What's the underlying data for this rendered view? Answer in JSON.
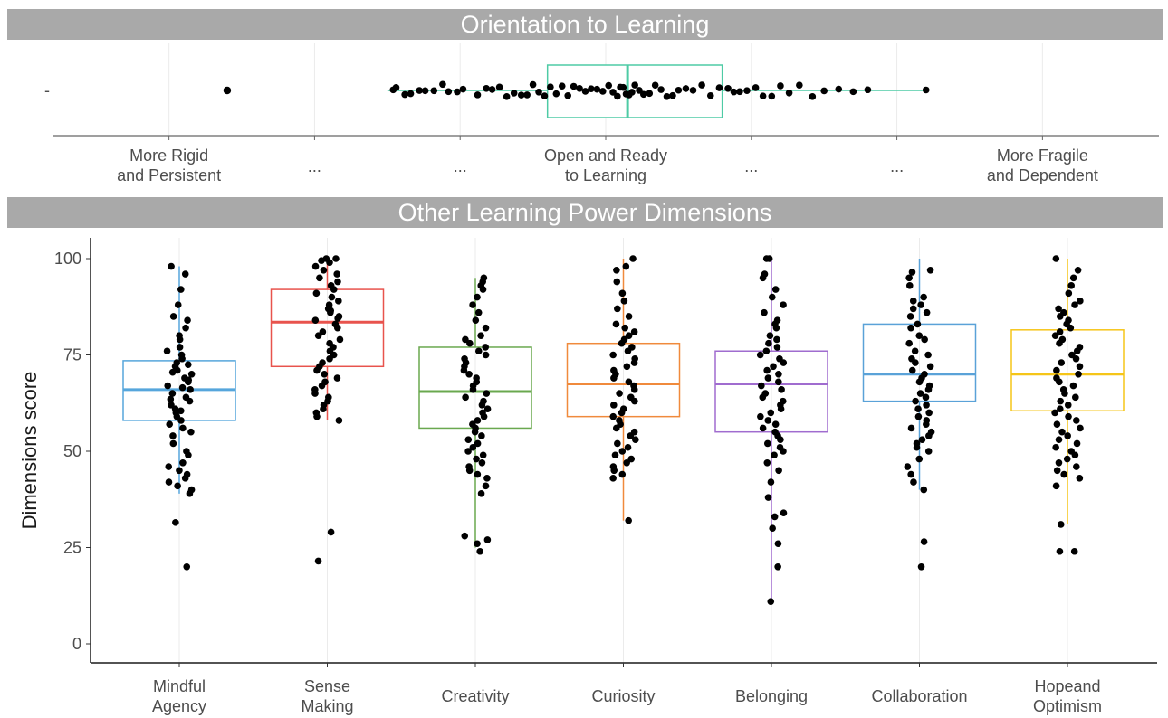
{
  "panels": {
    "top_title": "Orientation to Learning",
    "bottom_title": "Other Learning Power Dimensions"
  },
  "chart_data": [
    {
      "type": "box",
      "title": "Orientation to Learning",
      "orientation": "horizontal",
      "axis_categories": [
        {
          "lines": [
            "More Rigid",
            "and Persistent"
          ]
        },
        {
          "lines": [
            "..."
          ]
        },
        {
          "lines": [
            "..."
          ]
        },
        {
          "lines": [
            "Open and Ready",
            "to Learning"
          ]
        },
        {
          "lines": [
            "..."
          ]
        },
        {
          "lines": [
            "..."
          ]
        },
        {
          "lines": [
            "More Fragile",
            "and Dependent"
          ]
        }
      ],
      "y_tick_label": "-",
      "xlim": [
        -3.8,
        3.8
      ],
      "grid": true,
      "color": "#4ecba5",
      "box": {
        "min": -1.5,
        "q1": -0.4,
        "median": 0.15,
        "q3": 0.8,
        "max": 2.2
      },
      "outliers": [
        -2.6
      ],
      "points": [
        -1.46,
        -1.44,
        -1.38,
        -1.34,
        -1.28,
        -1.24,
        -1.18,
        -1.12,
        -1.08,
        -1.02,
        -0.98,
        -0.88,
        -0.82,
        -0.78,
        -0.73,
        -0.68,
        -0.63,
        -0.58,
        -0.54,
        -0.5,
        -0.46,
        -0.42,
        -0.38,
        -0.34,
        -0.3,
        -0.26,
        -0.22,
        -0.18,
        -0.14,
        -0.1,
        -0.06,
        -0.02,
        0.02,
        0.05,
        0.08,
        0.1,
        0.12,
        0.14,
        0.16,
        0.18,
        0.2,
        0.23,
        0.26,
        0.3,
        0.34,
        0.38,
        0.42,
        0.46,
        0.5,
        0.55,
        0.6,
        0.66,
        0.72,
        0.78,
        0.84,
        0.88,
        0.92,
        0.97,
        1.03,
        1.08,
        1.14,
        1.2,
        1.26,
        1.33,
        1.42,
        1.5,
        1.6,
        1.7,
        1.8,
        2.2
      ]
    },
    {
      "type": "box",
      "title": "Other Learning Power Dimensions",
      "ylabel": "Dimensions score",
      "ylim": [
        -5,
        105
      ],
      "yticks": [
        0,
        25,
        50,
        75,
        100
      ],
      "grid": true,
      "series": [
        {
          "category_lines": [
            "Mindful",
            "Agency"
          ],
          "color": "#56a6dc",
          "box": {
            "min": 39,
            "q1": 58,
            "median": 66,
            "q3": 73.5,
            "max": 98
          },
          "outliers": [
            31.5,
            20
          ],
          "points": [
            98,
            96,
            92,
            88,
            85,
            84,
            82,
            80,
            79,
            77,
            76,
            75,
            74,
            73,
            72.5,
            72,
            71,
            70.5,
            70,
            69,
            68.5,
            68,
            67,
            66.5,
            66,
            65,
            64,
            63.5,
            63,
            62,
            61,
            60.5,
            60,
            59,
            58,
            57,
            56,
            55,
            54,
            52,
            50,
            49,
            47,
            46,
            45,
            44,
            43,
            42,
            41,
            40,
            39
          ]
        },
        {
          "category_lines": [
            "Sense",
            "Making"
          ],
          "color": "#e8534d",
          "box": {
            "min": 58,
            "q1": 72,
            "median": 83.5,
            "q3": 92,
            "max": 100
          },
          "outliers": [
            29,
            21.5
          ],
          "points": [
            100,
            100,
            99.5,
            99,
            98,
            97,
            96,
            95,
            94,
            93,
            92,
            91,
            90,
            89,
            88,
            87,
            86.5,
            86,
            85,
            84.5,
            84,
            83,
            82,
            81,
            80,
            79,
            78,
            77,
            76,
            75,
            74,
            73,
            72,
            71,
            70,
            69,
            68,
            67,
            66,
            65,
            64,
            63,
            62,
            61,
            60,
            59,
            58
          ]
        },
        {
          "category_lines": [
            "Creativity"
          ],
          "color": "#6aa84f",
          "box": {
            "min": 25,
            "q1": 56,
            "median": 65.5,
            "q3": 77,
            "max": 95
          },
          "outliers": [
            24
          ],
          "points": [
            95,
            94,
            93,
            92,
            90,
            88,
            86,
            84,
            82,
            80,
            79,
            78,
            77,
            76,
            75,
            74,
            73,
            72,
            71,
            70,
            69,
            68,
            67,
            66,
            65,
            64,
            63,
            62,
            61,
            60,
            59,
            58,
            57,
            56,
            55,
            54,
            53,
            52,
            51,
            50,
            49,
            48,
            47,
            46,
            45,
            44,
            43,
            41,
            39,
            28,
            27,
            26
          ]
        },
        {
          "category_lines": [
            "Curiosity"
          ],
          "color": "#f08a3c",
          "box": {
            "min": 32,
            "q1": 59,
            "median": 67.5,
            "q3": 78,
            "max": 100
          },
          "points": [
            100,
            98,
            97,
            94,
            91,
            89,
            87,
            85,
            83,
            82,
            81,
            80,
            79,
            78,
            77,
            76,
            75,
            74,
            73,
            72,
            71,
            70,
            69,
            68,
            67,
            66,
            65,
            64,
            63,
            62,
            61,
            60,
            59,
            58,
            57,
            56,
            55,
            54,
            53,
            52,
            51,
            50,
            49,
            48,
            47,
            46,
            45,
            44,
            43,
            32
          ]
        },
        {
          "category_lines": [
            "Belonging"
          ],
          "color": "#a06ccf",
          "box": {
            "min": 11,
            "q1": 55,
            "median": 67.5,
            "q3": 76,
            "max": 100
          },
          "points": [
            100,
            100,
            96,
            95,
            92,
            90,
            88,
            86,
            84,
            83,
            82,
            80,
            79,
            78,
            77,
            76,
            75,
            74,
            73,
            72,
            71,
            70,
            69,
            68,
            67,
            66,
            65,
            64,
            63,
            62,
            61,
            60,
            59,
            58,
            57,
            56,
            55,
            54,
            53,
            52,
            51,
            50,
            49,
            47,
            45,
            42,
            38,
            34,
            33,
            30,
            26,
            20,
            11
          ]
        },
        {
          "category_lines": [
            "Collaboration"
          ],
          "color": "#5aa2d8",
          "box": {
            "min": 40,
            "q1": 63,
            "median": 70,
            "q3": 83,
            "max": 100
          },
          "outliers": [
            26.5,
            20
          ],
          "points": [
            97,
            96.5,
            95,
            93,
            90,
            89,
            88,
            87,
            86,
            85,
            83,
            82,
            80,
            79,
            78,
            76,
            75,
            74,
            73,
            72,
            71,
            70,
            69,
            68,
            67,
            66,
            65,
            64,
            63,
            62,
            61,
            60,
            59,
            58,
            57,
            56,
            55,
            54,
            53,
            52,
            51,
            50,
            48,
            46,
            44,
            42,
            40
          ]
        },
        {
          "category_lines": [
            "Hopeand",
            "Optimism"
          ],
          "color": "#f5c518",
          "box": {
            "min": 31,
            "q1": 60.5,
            "median": 70,
            "q3": 81.5,
            "max": 100
          },
          "outliers": [
            24
          ],
          "points": [
            100,
            97,
            95,
            93,
            91,
            89,
            88,
            87,
            86,
            85,
            84,
            83,
            82,
            81,
            80,
            79,
            78,
            77,
            76,
            75,
            74,
            73,
            72,
            71,
            70,
            69,
            68,
            67,
            66,
            65,
            64,
            63,
            62,
            61,
            60,
            59,
            58,
            57,
            56,
            55,
            54,
            53,
            52,
            51,
            50,
            49,
            48,
            47,
            46,
            45,
            44,
            43,
            41,
            31,
            24
          ]
        }
      ]
    }
  ]
}
